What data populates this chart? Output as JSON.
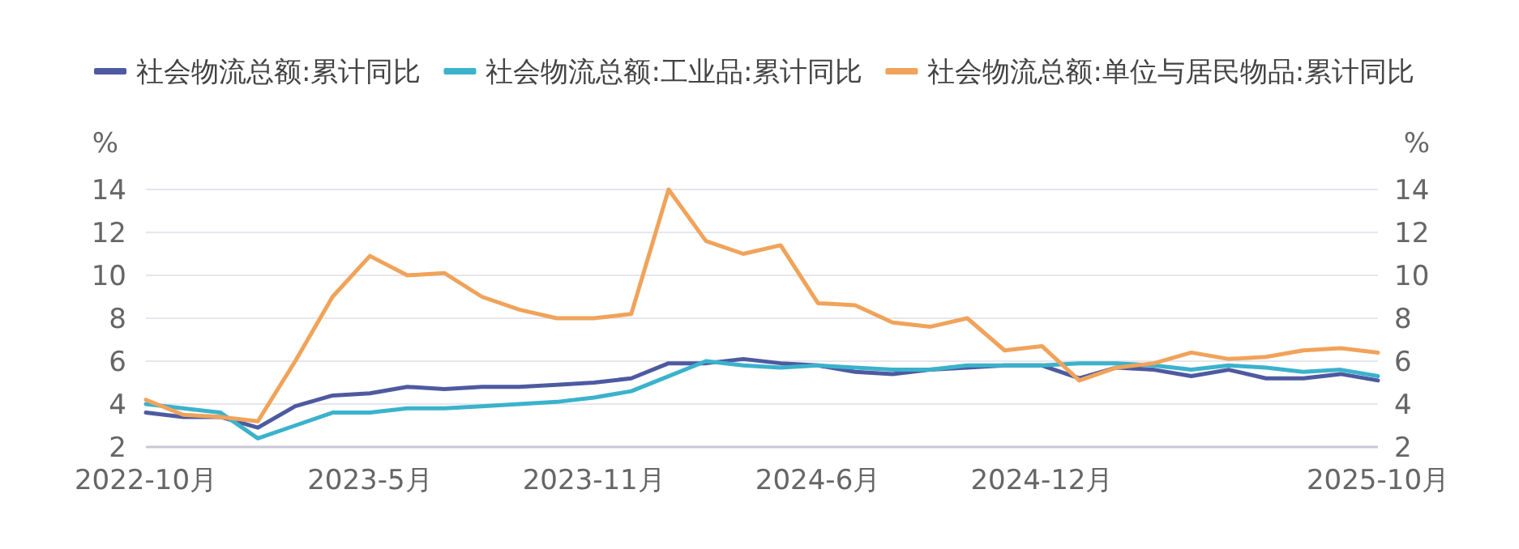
{
  "chart_data": {
    "type": "line",
    "categories": [
      "2022-10月",
      null,
      null,
      null,
      null,
      null,
      "2023-5月",
      null,
      null,
      null,
      null,
      null,
      "2023-11月",
      null,
      null,
      null,
      null,
      null,
      "2024-6月",
      null,
      null,
      null,
      null,
      null,
      "2024-12月",
      null,
      null,
      null,
      null,
      null,
      null,
      null,
      null,
      "2025-10月"
    ],
    "series": [
      {
        "name": "社会物流总额:累计同比",
        "color": "#4e5aa0",
        "values": [
          3.6,
          3.4,
          3.4,
          2.9,
          3.9,
          4.4,
          4.5,
          4.8,
          4.7,
          4.8,
          4.8,
          4.9,
          5.0,
          5.2,
          5.9,
          5.9,
          6.1,
          5.9,
          5.8,
          5.5,
          5.4,
          5.6,
          5.7,
          5.8,
          5.8,
          5.2,
          5.7,
          5.6,
          5.3,
          5.6,
          5.2,
          5.2,
          5.4,
          5.1
        ]
      },
      {
        "name": "社会物流总额:工业品:累计同比",
        "color": "#3bb2cc",
        "values": [
          4.0,
          3.8,
          3.6,
          2.4,
          3.0,
          3.6,
          3.6,
          3.8,
          3.8,
          3.9,
          4.0,
          4.1,
          4.3,
          4.6,
          5.3,
          6.0,
          5.8,
          5.7,
          5.8,
          5.7,
          5.6,
          5.6,
          5.8,
          5.8,
          5.8,
          5.9,
          5.9,
          5.8,
          5.6,
          5.8,
          5.7,
          5.5,
          5.6,
          5.3
        ]
      },
      {
        "name": "社会物流总额:单位与居民物品:累计同比",
        "color": "#f0a35a",
        "values": [
          4.2,
          3.5,
          3.4,
          3.2,
          6.0,
          9.0,
          10.9,
          10.0,
          10.1,
          9.0,
          8.4,
          8.0,
          8.0,
          8.2,
          14.0,
          11.6,
          11.0,
          11.4,
          8.7,
          8.6,
          7.8,
          7.6,
          8.0,
          6.5,
          6.7,
          5.1,
          5.7,
          5.9,
          6.4,
          6.1,
          6.2,
          6.5,
          6.6,
          6.4
        ]
      }
    ],
    "ylabel": "%",
    "y2label": "%",
    "ylim": [
      2,
      14
    ],
    "yticks": [
      2,
      4,
      6,
      8,
      10,
      12,
      14
    ],
    "y2lim": [
      2,
      14
    ],
    "y2ticks": [
      2,
      4,
      6,
      8,
      10,
      12,
      14
    ],
    "grid": "y",
    "legend": "top left",
    "marker": "none",
    "line_style": "solid"
  }
}
